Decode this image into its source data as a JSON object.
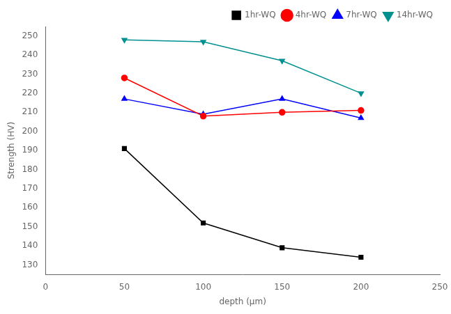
{
  "chart_data": {
    "type": "line",
    "x": [
      50,
      100,
      150,
      200
    ],
    "series": [
      {
        "name": "1hr-WQ",
        "color": "#000000",
        "marker": "square",
        "line_style": "solid",
        "values": [
          191,
          152,
          139,
          134
        ]
      },
      {
        "name": "4hr-WQ",
        "color": "#ff0000",
        "marker": "circle",
        "line_style": "solid",
        "values": [
          228,
          208,
          210,
          211
        ]
      },
      {
        "name": "7hr-WQ",
        "color": "#0000ff",
        "marker": "triangle",
        "line_style": "solid",
        "values": [
          217,
          209,
          217,
          207
        ]
      },
      {
        "name": "14hr-WQ",
        "color": "#009090",
        "marker": "triangle-down",
        "line_style": "solid",
        "values": [
          248,
          247,
          237,
          220
        ]
      }
    ],
    "xlabel": "depth (μm)",
    "ylabel": "Strength (HV)",
    "xlim": [
      0,
      250
    ],
    "ylim": [
      125,
      255
    ],
    "xticks": [
      0,
      50,
      100,
      150,
      200,
      250
    ],
    "yticks": [
      130,
      140,
      150,
      160,
      170,
      180,
      190,
      200,
      210,
      220,
      230,
      240,
      250
    ],
    "grid": false,
    "legend": "upper right"
  }
}
